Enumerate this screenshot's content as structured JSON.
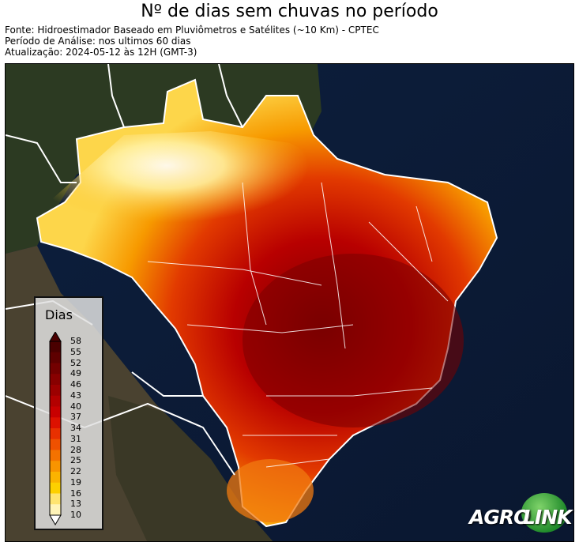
{
  "title": "Nº de dias sem chuvas no período",
  "source_line": "Fonte: Hidroestimador Baseado em Pluviômetros e Satélites (~10 Km) - CPTEC",
  "period_line": "Período de Análise: nos ultimos 60 dias",
  "update_line": "Atualização: 2024-05-12 às 12H (GMT-3)",
  "legend": {
    "title": "Dias",
    "ticks": [
      "58",
      "55",
      "52",
      "49",
      "46",
      "43",
      "40",
      "37",
      "34",
      "31",
      "28",
      "25",
      "22",
      "19",
      "16",
      "13",
      "10"
    ],
    "colors": [
      "#4a0000",
      "#5e0000",
      "#730000",
      "#880000",
      "#9c0000",
      "#b30000",
      "#c80000",
      "#dd1100",
      "#e83000",
      "#ef5100",
      "#f47200",
      "#f89400",
      "#fbb300",
      "#fdd000",
      "#fee470",
      "#fff4b8",
      "#ffffff"
    ]
  },
  "logo": {
    "left": "AGRO",
    "right": "LINK"
  }
}
